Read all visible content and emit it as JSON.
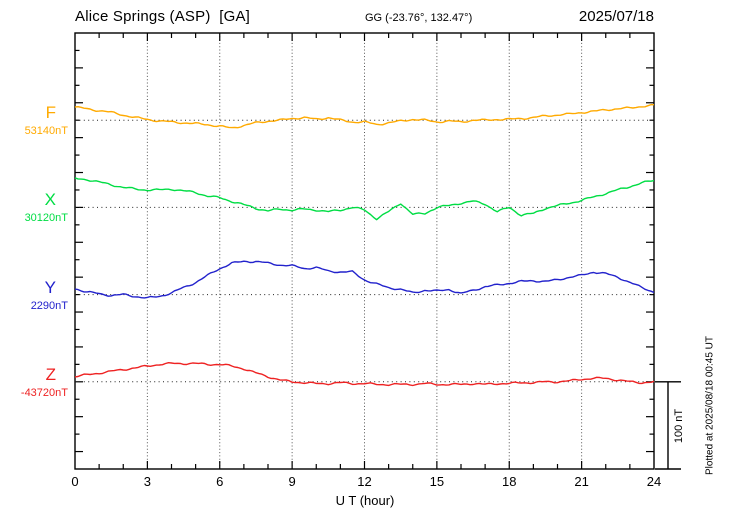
{
  "header": {
    "station_title": "Alice Springs (ASP)  [GA]",
    "coordinates": "GG (-23.76°, 132.47°)",
    "date": "2025/07/18"
  },
  "x_axis": {
    "label": "U T (hour)",
    "tick_labels": [
      "0",
      "3",
      "6",
      "9",
      "12",
      "15",
      "18",
      "21",
      "24"
    ],
    "grid_hours": [
      3,
      6,
      9,
      12,
      15,
      18,
      21
    ],
    "range_hours": [
      0,
      24
    ],
    "minor_tick_step_hours": 1
  },
  "y_axis": {
    "minor_tick_step_nT": 20,
    "division_per_trace_nT": 100
  },
  "scale_bar": {
    "label": "100 nT",
    "length_nT": 100
  },
  "plotted_at": "Plotted at 2025/08/18 00:45 UT",
  "chart_data": {
    "type": "line",
    "title": "Alice Springs (ASP) [GA] magnetogram, 2025/07/18",
    "xlabel": "U T (hour)",
    "xlim": [
      0,
      24
    ],
    "grid": "dotted vertical every 3 h; dotted horizontal baseline per trace",
    "x_start_hour": 0,
    "x_step_hours": 0.5,
    "offsets_unit": "nT relative to channel baseline",
    "series": [
      {
        "name": "F",
        "baseline_label": "53140nT",
        "baseline_nT": 53140,
        "color": "#FFAA00",
        "offsets_nT": [
          15,
          13,
          11,
          9,
          6,
          3,
          1,
          -1,
          -2,
          -3,
          -4,
          -5,
          -7,
          -9,
          -6,
          -3,
          -1,
          0,
          2,
          3,
          1,
          3,
          0,
          -2,
          -2,
          -5,
          -3,
          -1,
          1,
          0,
          -2,
          -1,
          -2,
          0,
          0,
          1,
          1,
          2,
          3,
          5,
          6,
          7,
          9,
          10,
          12,
          13,
          14,
          16,
          17
        ]
      },
      {
        "name": "X",
        "baseline_label": "30120nT",
        "baseline_nT": 30120,
        "color": "#00DD44",
        "offsets_nT": [
          33,
          32,
          29,
          26,
          23,
          21,
          20,
          20,
          21,
          19,
          17,
          13,
          11,
          7,
          3,
          -1,
          -4,
          -2,
          -3,
          -2,
          -3,
          -5,
          -3,
          0,
          -3,
          -13,
          -5,
          5,
          -8,
          -7,
          0,
          2,
          5,
          7,
          4,
          -5,
          0,
          -9,
          -7,
          -1,
          2,
          5,
          8,
          12,
          16,
          20,
          24,
          28,
          31
        ]
      },
      {
        "name": "Y",
        "baseline_label": "2290nT",
        "baseline_nT": 2290,
        "color": "#2222CC",
        "offsets_nT": [
          7,
          3,
          1,
          -1,
          0,
          -2,
          -4,
          -2,
          2,
          8,
          14,
          22,
          30,
          36,
          38,
          38,
          36,
          34,
          33,
          30,
          31,
          27,
          26,
          26,
          17,
          12,
          8,
          6,
          2,
          5,
          4,
          6,
          1,
          5,
          9,
          11,
          13,
          15,
          16,
          15,
          17,
          20,
          22,
          26,
          24,
          20,
          14,
          8,
          3
        ]
      },
      {
        "name": "Z",
        "baseline_label": "-43720nT",
        "baseline_nT": -43720,
        "color": "#EE2222",
        "offsets_nT": [
          6,
          8,
          10,
          12,
          14,
          16,
          18,
          20,
          21,
          21,
          21,
          20,
          20,
          18,
          15,
          10,
          6,
          2,
          0,
          -1,
          -2,
          -2,
          -1,
          -2,
          -2,
          -3,
          -3,
          -3,
          -3,
          -2,
          -3,
          -3,
          -3,
          -2,
          -3,
          -2,
          -2,
          -1,
          -1,
          0,
          0,
          1,
          3,
          4,
          4,
          2,
          0,
          -1,
          0
        ]
      }
    ]
  }
}
